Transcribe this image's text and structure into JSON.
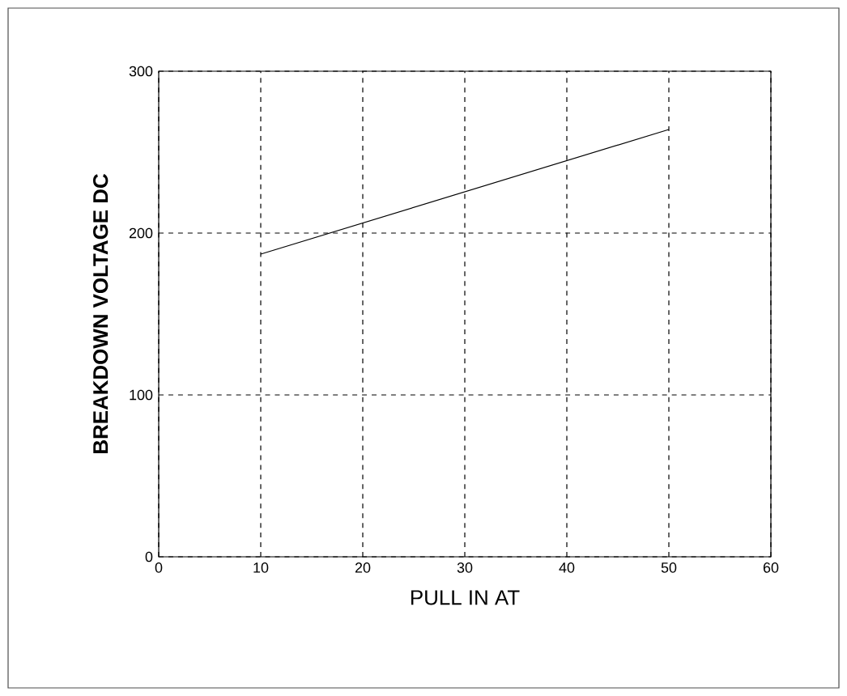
{
  "chart_data": {
    "type": "line",
    "xlabel": "PULL IN AT",
    "ylabel": "BREAKDOWN VOLTAGE DC",
    "x": [
      10,
      50
    ],
    "series": [
      {
        "color": "#000000",
        "values": [
          187,
          264
        ]
      }
    ],
    "xlim": [
      0,
      60
    ],
    "xticks": [
      0,
      10,
      20,
      30,
      40,
      50,
      60
    ],
    "ylim": [
      0,
      300
    ],
    "yticks": [
      0,
      100,
      200,
      300
    ],
    "grid": true,
    "marker": "none",
    "line_style": "solid"
  }
}
